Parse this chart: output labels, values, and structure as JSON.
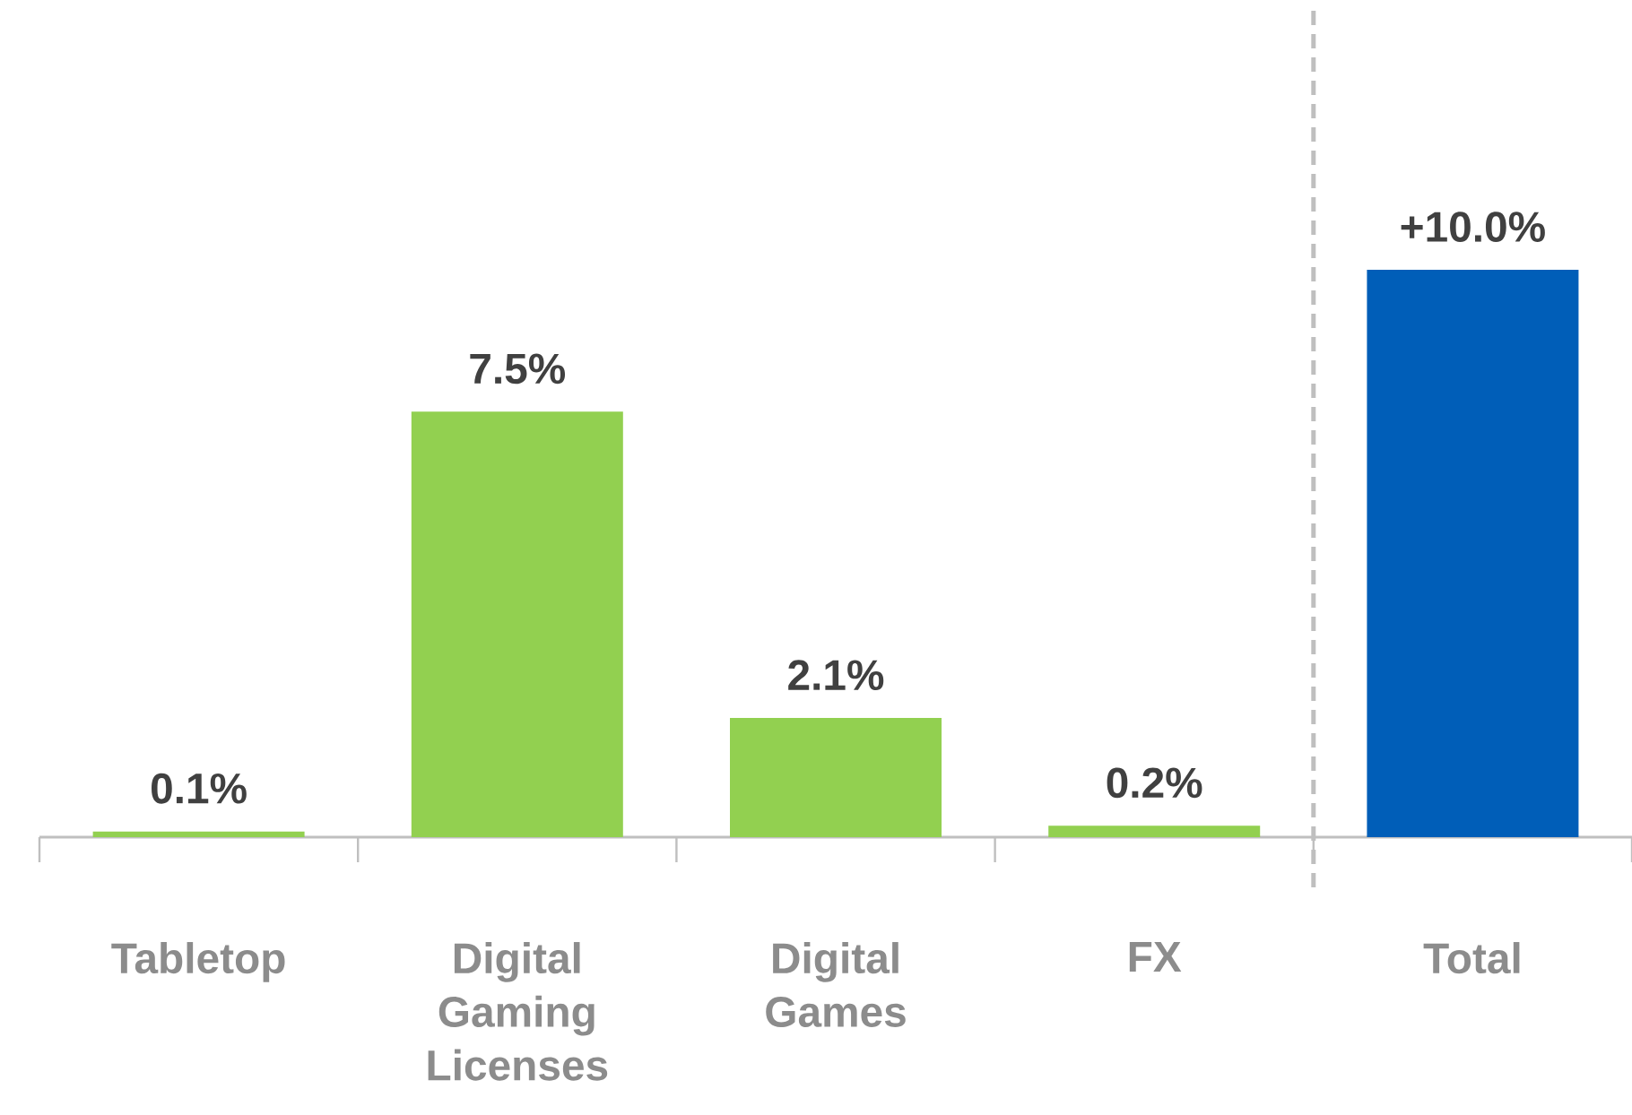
{
  "chart_data": {
    "type": "bar",
    "categories": [
      "Tabletop",
      "Digital Gaming Licenses",
      "Digital Games",
      "FX",
      "Total"
    ],
    "values": [
      0.1,
      7.5,
      2.1,
      0.2,
      10.0
    ],
    "colors": [
      "#92d050",
      "#92d050",
      "#92d050",
      "#92d050",
      "#005eb8"
    ],
    "value_labels": [
      "0.1%",
      "7.5%",
      "2.1%",
      "0.2%",
      "+10.0%"
    ]
  }
}
